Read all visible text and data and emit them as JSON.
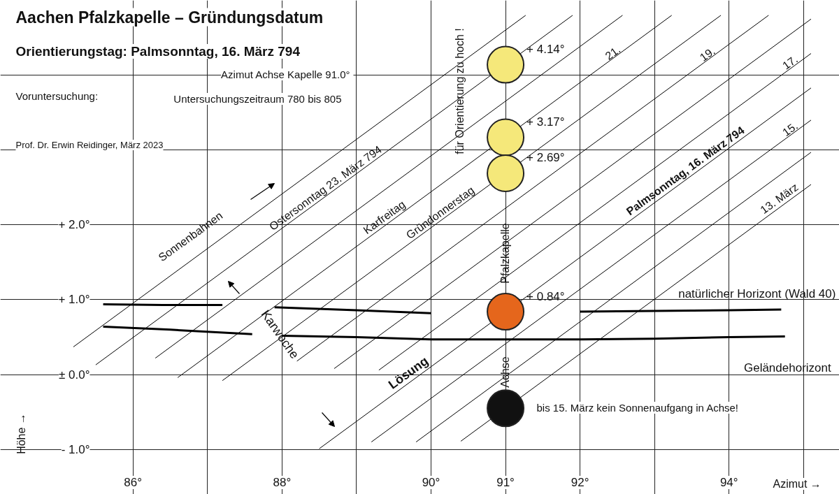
{
  "chart_data": {
    "type": "line",
    "title": "Aachen Pfalzkapelle – Gründungsdatum",
    "subtitle": "Orientierungstag:  Palmsonntag, 16. März 794",
    "xlabel": "Azimut →",
    "ylabel": "Höhe →",
    "xlim": [
      84.22,
      95.48
    ],
    "ylim": [
      -1.6,
      5.0
    ],
    "xticks": [
      {
        "value": 86,
        "label": "86°"
      },
      {
        "value": 87,
        "label": null
      },
      {
        "value": 88,
        "label": "88°"
      },
      {
        "value": 89,
        "label": null
      },
      {
        "value": 90,
        "label": "90°"
      },
      {
        "value": 91,
        "label": "91°"
      },
      {
        "value": 92,
        "label": "92°"
      },
      {
        "value": 93,
        "label": null
      },
      {
        "value": 94,
        "label": "94°"
      },
      {
        "value": 95,
        "label": null
      }
    ],
    "yticks": [
      {
        "value": -1,
        "label": "- 1.0°"
      },
      {
        "value": 0,
        "label": "± 0.0°"
      },
      {
        "value": 1,
        "label": "+ 1.0°"
      },
      {
        "value": 2,
        "label": "+ 2.0°"
      },
      {
        "value": 3,
        "label": null
      },
      {
        "value": 4,
        "label": null
      }
    ],
    "grid": true,
    "annotations": [
      "Voruntersuchung:",
      "Azimut Achse Kapelle  91.0°",
      "Untersuchungszeitraum 780 bis 805",
      "Prof. Dr. Erwin Reidinger, März 2023",
      "Sonnenbahnen",
      {
        "text": "Ostersonntag 23. März 794",
        "x": 88.63,
        "y": 2.41
      },
      {
        "text": "Karfreitag",
        "x": 89.42,
        "y": 2.02
      },
      {
        "text": "Gründonnerstag",
        "x": 90.17,
        "y": 2.08
      },
      {
        "text": "Palmsonntag, 16. März 794",
        "x": 93.46,
        "y": 2.64
      },
      {
        "text": "21.",
        "x": 92.47,
        "y": 4.24
      },
      {
        "text": "19.",
        "x": 93.74,
        "y": 4.22
      },
      {
        "text": "17.",
        "x": 94.85,
        "y": 4.11
      },
      {
        "text": "15.",
        "x": 94.85,
        "y": 3.22
      },
      {
        "text": "13. März",
        "x": 94.72,
        "y": 2.27
      },
      "für Orientierung zu hoch !",
      "Pfalzkapelle",
      "Achse",
      "bis 15. März kein Sonnenaufgang in Achse!",
      "Karwoche",
      {
        "text": "Lösung",
        "x": 89.75,
        "y": -0.07
      }
    ],
    "series": [
      {
        "color": "#000000",
        "x": [
          85.2,
          91.27
        ],
        "values": [
          0.37,
          4.8
        ]
      },
      {
        "color": "#000000",
        "x": [
          85.5,
          91.9
        ],
        "values": [
          0.13,
          4.8
        ]
      },
      {
        "color": "#000000",
        "x": [
          86.3,
          92.57
        ],
        "values": [
          0.22,
          4.8
        ]
      },
      {
        "color": "#000000",
        "x": [
          86.6,
          93.23
        ],
        "values": [
          -0.04,
          4.8
        ]
      },
      {
        "color": "#000000",
        "x": [
          87.2,
          93.89
        ],
        "values": [
          -0.08,
          4.8
        ]
      },
      {
        "color": "#000000",
        "x": [
          88.2,
          94.53
        ],
        "values": [
          0.18,
          4.8
        ]
      },
      {
        "color": "#000000",
        "x": [
          88.7,
          95.1
        ],
        "values": [
          0.08,
          4.75
        ]
      },
      {
        "color": "#000000",
        "x": [
          89.3,
          95.1
        ],
        "values": [
          0.06,
          4.29
        ]
      },
      {
        "color": "#000000",
        "x": [
          88.5,
          95.1
        ],
        "values": [
          -0.99,
          3.83
        ]
      },
      {
        "color": "#000000",
        "x": [
          89.2,
          95.1
        ],
        "values": [
          -0.9,
          3.4
        ]
      },
      {
        "color": "#000000",
        "x": [
          89.8,
          95.1
        ],
        "values": [
          -0.9,
          2.97
        ]
      },
      {
        "color": "#000000",
        "x": [
          90.4,
          95.1
        ],
        "values": [
          -0.89,
          2.54
        ]
      },
      {
        "name": "natürlicher Horizont (Wald 40)",
        "color": "#000000",
        "x": [
          85.6,
          86.4,
          87.2,
          87.6,
          87.9,
          89,
          90,
          91,
          92,
          93,
          94,
          94.7
        ],
        "values": [
          0.94,
          0.93,
          0.93,
          null,
          0.9,
          0.86,
          0.82,
          null,
          0.84,
          0.85,
          0.86,
          0.87
        ]
      },
      {
        "name": "Geländehorizont",
        "color": "#000000",
        "x": [
          85.6,
          86.5,
          87.6,
          87.8,
          88,
          89,
          90,
          91,
          92,
          93,
          94,
          94.75
        ],
        "values": [
          0.64,
          0.6,
          0.54,
          null,
          0.52,
          0.5,
          0.47,
          0.47,
          0.47,
          0.48,
          0.5,
          0.51
        ]
      },
      {
        "type": "scatter",
        "marker": "circle",
        "x": [
          91,
          91,
          91,
          91,
          91
        ],
        "values": [
          4.14,
          3.17,
          2.69,
          0.84,
          -0.45
        ],
        "colors": [
          "#f5e87a",
          "#f5e87a",
          "#f5e87a",
          "#e5661c",
          "#111111"
        ],
        "value_labels": [
          "+ 4.14°",
          "+ 3.17°",
          "+ 2.69°",
          "+ 0.84°",
          null
        ]
      }
    ]
  }
}
